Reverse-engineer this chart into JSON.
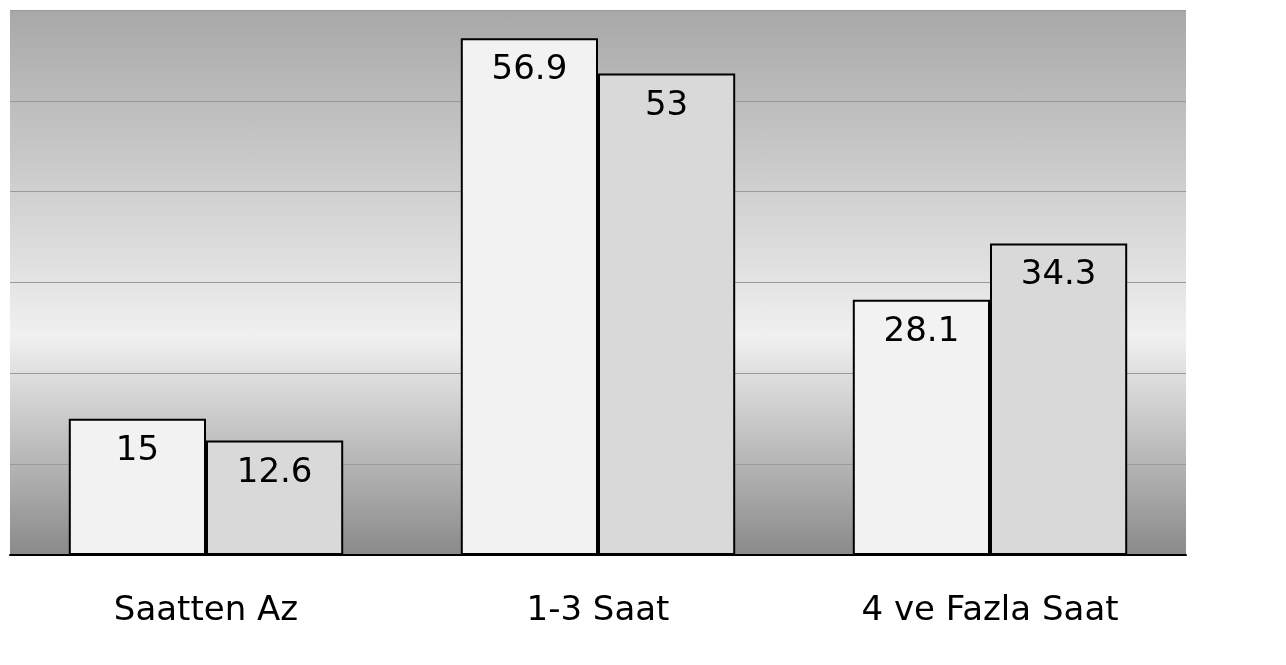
{
  "chart_data": {
    "type": "bar",
    "categories": [
      "Saatten Az",
      "1-3 Saat",
      "4 ve Fazla Saat"
    ],
    "series": [
      {
        "color": "#f2f2f2",
        "values": [
          15,
          56.9,
          28.1
        ]
      },
      {
        "color": "#d9d9d9",
        "values": [
          12.6,
          53,
          34.3
        ]
      }
    ],
    "data_labels": true,
    "grid": "y",
    "tick_labels": "x"
  }
}
